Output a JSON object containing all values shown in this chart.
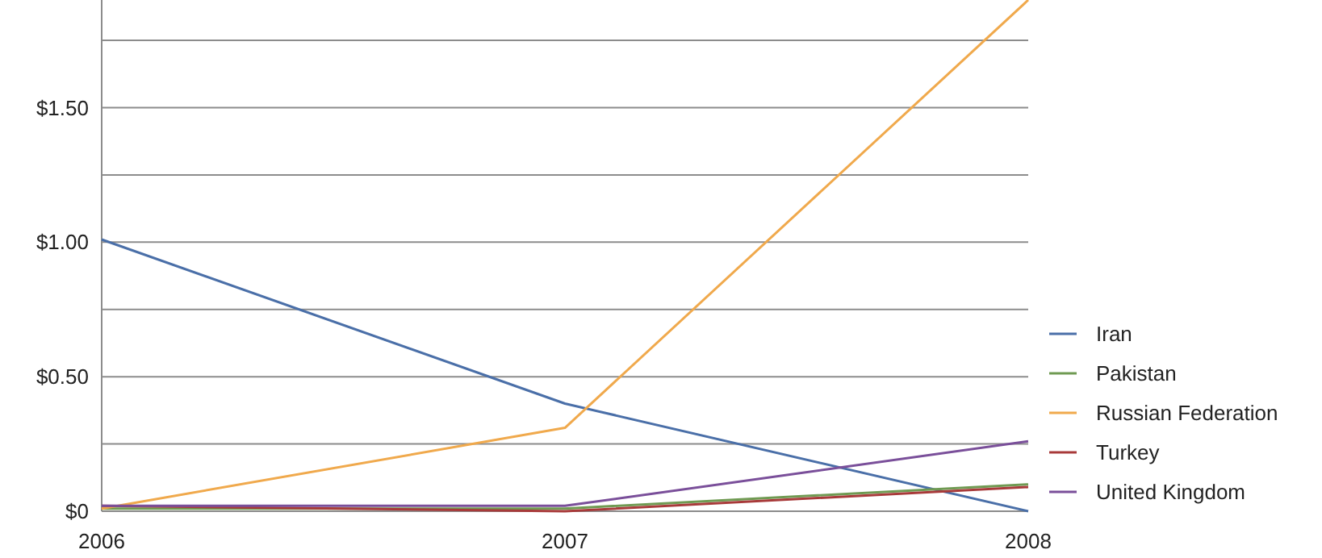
{
  "chart_data": {
    "type": "line",
    "categories": [
      "2006",
      "2007",
      "2008"
    ],
    "series": [
      {
        "name": "Iran",
        "color": "#4a6fa8",
        "values": [
          1.01,
          0.4,
          0
        ]
      },
      {
        "name": "Pakistan",
        "color": "#6f9a52",
        "values": [
          0.01,
          0.01,
          0.1
        ]
      },
      {
        "name": "Russian Federation",
        "color": "#f0a94c",
        "values": [
          0.01,
          0.31,
          1.9
        ]
      },
      {
        "name": "Turkey",
        "color": "#a83a3a",
        "values": [
          0.02,
          0,
          0.09
        ]
      },
      {
        "name": "United Kingdom",
        "color": "#7a4f9a",
        "values": [
          0.02,
          0.02,
          0.26
        ]
      }
    ],
    "yticks": [
      {
        "value": 0,
        "label": "$0"
      },
      {
        "value": 0.25,
        "label": null
      },
      {
        "value": 0.5,
        "label": "$0.50"
      },
      {
        "value": 0.75,
        "label": null
      },
      {
        "value": 1,
        "label": "$1.00"
      },
      {
        "value": 1.25,
        "label": null
      },
      {
        "value": 1.5,
        "label": "$1.50"
      },
      {
        "value": 1.75,
        "label": null
      }
    ],
    "ylim": [
      0,
      1.9
    ],
    "grid": "y",
    "legend": "right",
    "marker": "none",
    "line_style": "solid"
  }
}
